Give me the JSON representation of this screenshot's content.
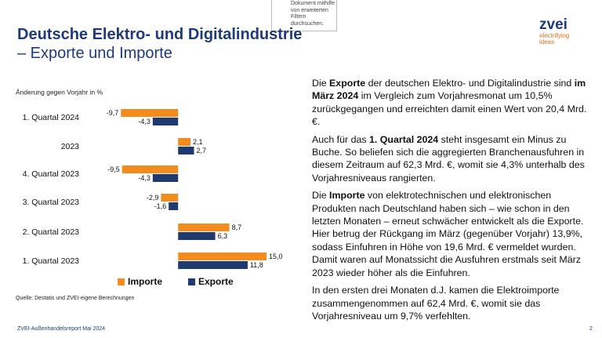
{
  "header": {
    "title": "Deutsche Elektro- und Digitalindustrie",
    "subtitle": "– Exporte und Importe"
  },
  "tooltip": [
    "Dokument mithilfe",
    "von erweiterten",
    "Filtern",
    "durchsuchen."
  ],
  "logo": {
    "name": "zvei",
    "slogan": [
      "electrifying",
      "ideas"
    ]
  },
  "chart_data": {
    "type": "hbar",
    "axis_label": "Änderung gegen Vorjahr in %",
    "categories": [
      "1. Quartal 2024",
      "2023",
      "4. Quartal 2023",
      "3. Quartal 2023",
      "2. Quartal 2023",
      "1. Quartal 2023"
    ],
    "series": [
      {
        "name": "Importe",
        "color": "#f28c1e",
        "values": [
          -9.7,
          2.1,
          -9.5,
          -2.9,
          8.7,
          15.0
        ],
        "value_labels": [
          "-9,7",
          "2,1",
          "-9,5",
          "-2,9",
          "8,7",
          "15,0"
        ]
      },
      {
        "name": "Exporte",
        "color": "#1f3a6e",
        "values": [
          -4.3,
          2.7,
          -4.3,
          -1.6,
          6.3,
          11.8
        ],
        "value_labels": [
          "-4,3",
          "2,7",
          "-4,3",
          "-1,6",
          "6,3",
          "11,8"
        ]
      }
    ],
    "xlim": [
      -10,
      15
    ],
    "source": "Quelle: Destatis und ZVEI-eigene Berechnungen"
  },
  "text": {
    "paragraphs": [
      [
        "Die ",
        "Exporte",
        " der deutschen Elektro- und Digitalindustrie sind ",
        "im März 2024",
        " im Vergleich zum Vorjahresmonat um 10,5% zurückgegangen und erreichten damit einen Wert von 20,4 Mrd. €."
      ],
      [
        "Auch für das ",
        "1. Quartal 2024",
        " steht insgesamt ein Minus zu Buche. So beliefen sich die aggregierten Branchenausfuhren in diesem Zeitraum auf 62,3 Mrd. €, womit sie 4,3% unterhalb des Vorjahresniveaus rangierten."
      ],
      [
        "Die ",
        "Importe",
        " von elektrotechnischen und elektronischen Produkten nach Deutschland haben sich – wie schon in den letzten Monaten – erneut schwächer entwickelt als die Exporte. Hier betrug der Rückgang im März (gegenüber Vorjahr) 13,9%, sodass Einfuhren in Höhe von 19,6 Mrd. € vermeldet wurden. Damit waren auf Monatssicht die Ausfuhren erstmals seit März 2023 wieder höher als die Einfuhren."
      ],
      [
        "In den ersten drei Monaten d.J. kamen die Elektroimporte zusammengenommen auf 62,4 Mrd. €, womit sie das Vorjahresniveau um 9,7% verfehlten."
      ]
    ]
  },
  "footer": {
    "report": "ZVEI-Außenhandelsreport Mai 2024",
    "page": "2"
  }
}
